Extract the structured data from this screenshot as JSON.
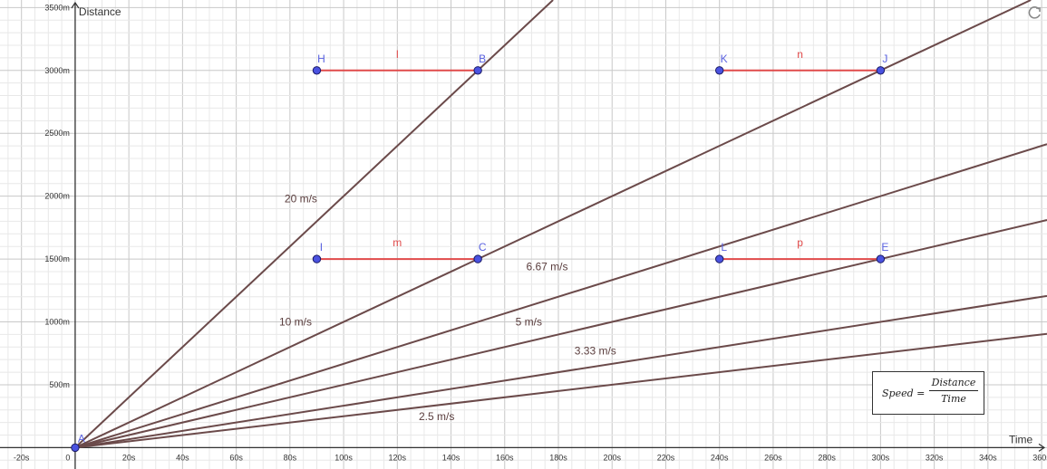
{
  "chart_data": {
    "type": "line",
    "xlabel": "Time",
    "ylabel": "Distance",
    "xlim": [
      -28,
      362
    ],
    "ylim": [
      -170,
      3560
    ],
    "x_ticks": [
      -20,
      20,
      40,
      60,
      80,
      100,
      120,
      140,
      160,
      180,
      200,
      220,
      240,
      260,
      280,
      300,
      320,
      340,
      360
    ],
    "x_tick_suffix": "s",
    "y_ticks": [
      500,
      1000,
      1500,
      2000,
      2500,
      3000,
      3500
    ],
    "y_tick_suffix": "m",
    "origin_label": "0",
    "grid": true,
    "line_color": "#6b4a4a",
    "segment_color": "#e04a4a",
    "point_color": "#4a52e0",
    "series": [
      {
        "label": "20 m/s",
        "slope": 20,
        "label_pos": [
          78,
          1950
        ]
      },
      {
        "label": "10 m/s",
        "slope": 10,
        "label_pos": [
          76,
          970
        ]
      },
      {
        "label": "6.67 m/s",
        "slope": 6.667,
        "label_pos": [
          168,
          1410
        ]
      },
      {
        "label": "5 m/s",
        "slope": 5,
        "label_pos": [
          164,
          970
        ]
      },
      {
        "label": "3.33 m/s",
        "slope": 3.333,
        "label_pos": [
          186,
          740
        ]
      },
      {
        "label": "2.5 m/s",
        "slope": 2.5,
        "label_pos": [
          128,
          220
        ]
      }
    ],
    "points": [
      {
        "name": "A",
        "x": 0,
        "y": 0
      },
      {
        "name": "H",
        "x": 90,
        "y": 3000
      },
      {
        "name": "B",
        "x": 150,
        "y": 3000
      },
      {
        "name": "K",
        "x": 240,
        "y": 3000
      },
      {
        "name": "J",
        "x": 300,
        "y": 3000
      },
      {
        "name": "I",
        "x": 90,
        "y": 1500
      },
      {
        "name": "C",
        "x": 150,
        "y": 1500
      },
      {
        "name": "L",
        "x": 240,
        "y": 1500
      },
      {
        "name": "E",
        "x": 300,
        "y": 1500
      }
    ],
    "segments": [
      {
        "name": "l",
        "from": "H",
        "to": "B"
      },
      {
        "name": "n",
        "from": "K",
        "to": "J"
      },
      {
        "name": "m",
        "from": "I",
        "to": "C"
      },
      {
        "name": "p",
        "from": "L",
        "to": "E"
      }
    ]
  },
  "formula": {
    "lhs": "Speed =",
    "numerator": "Distance",
    "denominator": "Time"
  }
}
